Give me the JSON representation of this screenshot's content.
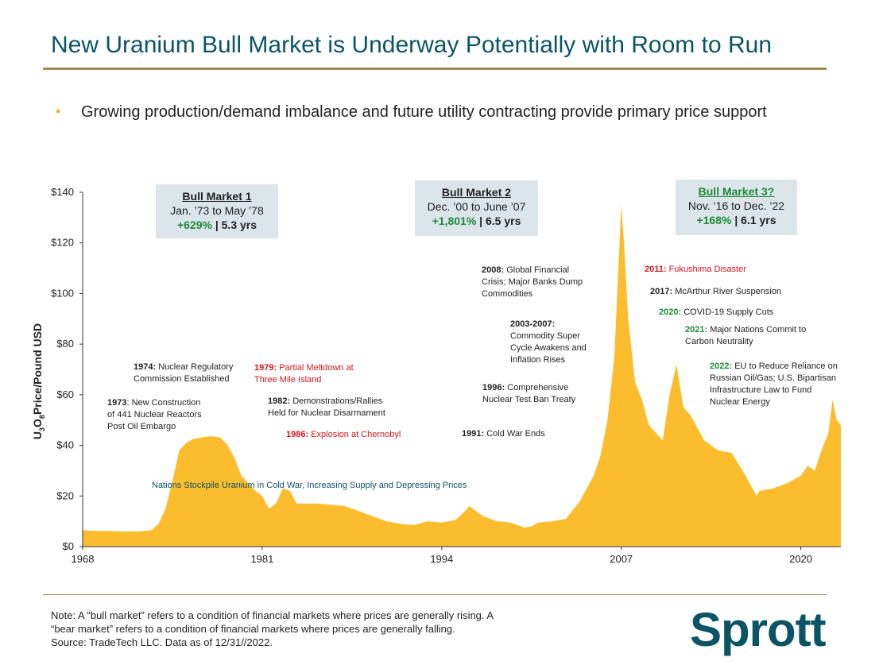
{
  "header": {
    "title": "New Uranium Bull Market is Underway Potentially with Room to Run"
  },
  "bullet": {
    "symbol": "•",
    "text": "Growing production/demand imbalance and future utility contracting provide primary price support"
  },
  "y_axis_label": {
    "prefix": "U",
    "sub1": "3",
    "mid": "O",
    "sub2": "8",
    "suffix": " Price/Pound USD"
  },
  "bull_markets": [
    {
      "title": "Bull Market 1",
      "period": "Jan. ’73 to May ’78",
      "gain": "+629%",
      "duration": " | 5.3 yrs"
    },
    {
      "title": "Bull Market 2",
      "period": "Dec. ’00 to June ’07",
      "gain": "+1,801%",
      "duration": " | 6.5 yrs"
    },
    {
      "title": "Bull Market 3?",
      "period": "Nov. ’16 to Dec. ’22",
      "gain": "+168%",
      "duration": " | 6.1 yrs"
    }
  ],
  "annotations": [
    {
      "bold": "1974:",
      "text": " Nuclear Regulatory",
      "line2": "Commission Established"
    },
    {
      "bold": "1973",
      "text": ": New Construction",
      "line2": "of 441 Nuclear Reactors",
      "line3": "Post Oil Embargo"
    },
    {
      "bold": "1979:",
      "text": " Partial Meltdown at",
      "line2": "Three Mile Island"
    },
    {
      "bold": "1982:",
      "text": " Demonstrations/Rallies",
      "line2": "Held for Nuclear Disarmament"
    },
    {
      "bold": "1986:",
      "text": " Explosion at Chernobyl"
    },
    {
      "text": "Nations Stockpile Uranium in Cold War, Increasing Supply and Depressing Prices"
    },
    {
      "bold": "1991:",
      "text": " Cold War Ends"
    },
    {
      "bold": "1996:",
      "text": " Comprehensive",
      "line2": "Nuclear Test Ban Treaty"
    },
    {
      "bold": "2003-2007:",
      "line2": "Commodity Super",
      "line3": "Cycle Awakens and",
      "line4": "Inflation Rises"
    },
    {
      "bold": "2008:",
      "text": " Global Financial",
      "line2": "Crisis; Major Banks Dump",
      "line3": "Commodities"
    },
    {
      "bold": "2011:",
      "text": " Fukushima Disaster"
    },
    {
      "bold": "2017:",
      "text": " McArthur River Suspension"
    },
    {
      "bold": "2020:",
      "text": " COVID-19 Supply Cuts"
    },
    {
      "bold": "2021:",
      "text": " Major Nations Commit to",
      "line2": "Carbon Neutrality"
    },
    {
      "bold": "2022:",
      "text": " EU to Reduce Reliance on",
      "line2": "Russian Oil/Gas; U.S. Bipartisan",
      "line3": "Infrastructure Law to Fund",
      "line4": "Nuclear Energy"
    }
  ],
  "footer": {
    "note_line1": "Note: A “bull market” refers to a condition of financial markets where prices are generally rising. A",
    "note_line2": "“bear market” refers to a condition of financial markets where prices are generally falling.",
    "source": "Source: TradeTech LLC. Data as of 12/31//2022.",
    "logo": "Sprott"
  },
  "chart_data": {
    "type": "area",
    "ylabel": "U3O8 Price/Pound USD",
    "ylim": [
      0,
      140
    ],
    "xlim": [
      1968,
      2022.9
    ],
    "x_ticks": [
      1968,
      1981,
      1994,
      2007,
      2020
    ],
    "x_tick_labels": [
      "1968",
      "1981",
      "1994",
      "2007",
      "2020"
    ],
    "y_ticks": [
      0,
      20,
      40,
      60,
      80,
      100,
      120,
      140
    ],
    "y_tick_labels": [
      "$0",
      "$20",
      "$40",
      "$60",
      "$80",
      "$100",
      "$120",
      "$140"
    ],
    "fill_color": "#fbbd2e",
    "series": [
      {
        "x": [
          1968,
          1969,
          1970,
          1971,
          1972,
          1973,
          1973.5,
          1974,
          1974.5,
          1975,
          1975.5,
          1976,
          1976.5,
          1977,
          1977.5,
          1978,
          1978.5,
          1979,
          1979.5,
          1980,
          1980.5,
          1981,
          1981.5,
          1982,
          1982.5,
          1983,
          1983.5,
          1984,
          1985,
          1986,
          1987,
          1988,
          1989,
          1990,
          1991,
          1992,
          1993,
          1994,
          1995,
          1995.5,
          1996,
          1996.5,
          1997,
          1998,
          1999,
          2000,
          2000.5,
          2001,
          2002,
          2003,
          2004,
          2005,
          2005.5,
          2006,
          2006.5,
          2007,
          2007.2,
          2007.5,
          2008,
          2008.5,
          2009,
          2009.5,
          2010,
          2010.5,
          2011,
          2011.2,
          2011.5,
          2012,
          2013,
          2014,
          2015,
          2016,
          2016.8,
          2017,
          2018,
          2019,
          2020,
          2020.5,
          2021,
          2021.5,
          2022,
          2022.3,
          2022.6,
          2022.9
        ],
        "y": [
          6.5,
          6.2,
          6.2,
          6.0,
          6.0,
          6.5,
          9.0,
          15.0,
          26.0,
          38.0,
          41.0,
          42.5,
          43.0,
          43.5,
          43.5,
          43.0,
          40.0,
          35.0,
          28.0,
          25.0,
          22.0,
          20.0,
          15.0,
          17.0,
          23.0,
          22.0,
          17.0,
          17.0,
          17.0,
          16.5,
          16.0,
          14.0,
          12.0,
          10.0,
          9.0,
          8.5,
          10.0,
          9.5,
          10.5,
          13.0,
          16.0,
          14.0,
          12.0,
          10.0,
          9.5,
          7.5,
          8.0,
          9.5,
          10.0,
          11.0,
          18.0,
          28.0,
          36.0,
          50.0,
          75.0,
          135.0,
          120.0,
          90.0,
          65.0,
          58.0,
          48.0,
          45.0,
          42.0,
          60.0,
          72.0,
          65.0,
          55.0,
          52.0,
          42.0,
          38.0,
          37.0,
          28.0,
          20.0,
          22.0,
          23.0,
          25.0,
          28.0,
          32.0,
          30.0,
          38.0,
          45.0,
          58.0,
          50.0,
          48.0
        ]
      }
    ]
  }
}
